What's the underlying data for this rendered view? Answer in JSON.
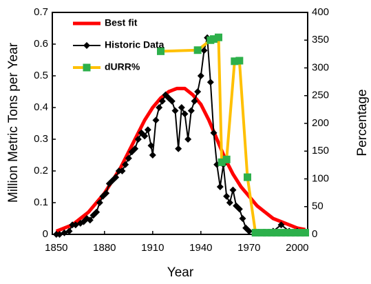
{
  "chart_data": {
    "type": "line",
    "y_label": "Million Metric Tons per Year",
    "y2_label": "Percentage",
    "x_label": "Year",
    "xlim": [
      1847.5,
      2006.5
    ],
    "xticks": [
      1850,
      1880,
      1910,
      1940,
      1970,
      2000
    ],
    "ylim": [
      0,
      0.7
    ],
    "yticks": [
      0,
      0.1,
      0.2,
      0.3,
      0.4,
      0.5,
      0.6,
      0.7
    ],
    "y2lim": [
      0,
      400
    ],
    "y2ticks": [
      0,
      50,
      100,
      150,
      200,
      250,
      300,
      350,
      400
    ],
    "legend": "upper-left",
    "series": [
      {
        "name": "Best fit",
        "color": "#ff0000",
        "marker": "none",
        "x": [
          1850,
          1855,
          1860,
          1865,
          1870,
          1875,
          1880,
          1885,
          1890,
          1895,
          1900,
          1905,
          1910,
          1915,
          1920,
          1925,
          1930,
          1935,
          1940,
          1945,
          1950,
          1955,
          1960,
          1965,
          1970,
          1975,
          1980,
          1985,
          1990,
          1995,
          2000,
          2005
        ],
        "values": [
          0.01,
          0.02,
          0.03,
          0.05,
          0.07,
          0.1,
          0.13,
          0.17,
          0.21,
          0.26,
          0.31,
          0.36,
          0.4,
          0.43,
          0.45,
          0.46,
          0.46,
          0.44,
          0.41,
          0.36,
          0.3,
          0.24,
          0.19,
          0.15,
          0.12,
          0.09,
          0.07,
          0.05,
          0.04,
          0.03,
          0.02,
          0.015
        ]
      },
      {
        "name": "Historic Data",
        "color": "#000000",
        "marker": "diamond",
        "marker_color": "#000000",
        "x": [
          1850,
          1852,
          1855,
          1858,
          1860,
          1862,
          1865,
          1867,
          1869,
          1871,
          1873,
          1875,
          1877,
          1879,
          1881,
          1883,
          1885,
          1887,
          1889,
          1891,
          1893,
          1895,
          1897,
          1899,
          1901,
          1903,
          1905,
          1907,
          1909,
          1910,
          1912,
          1914,
          1916,
          1918,
          1920,
          1922,
          1924,
          1926,
          1928,
          1930,
          1932,
          1934,
          1936,
          1938,
          1940,
          1942,
          1944,
          1946,
          1948,
          1950,
          1952,
          1954,
          1956,
          1958,
          1960,
          1962,
          1964,
          1966,
          1968,
          1970,
          1975,
          1980,
          1985,
          1990,
          1995,
          2000,
          2005
        ],
        "values": [
          0,
          0,
          0.005,
          0.01,
          0.03,
          0.03,
          0.035,
          0.04,
          0.05,
          0.045,
          0.06,
          0.07,
          0.1,
          0.12,
          0.13,
          0.16,
          0.17,
          0.18,
          0.2,
          0.2,
          0.22,
          0.24,
          0.26,
          0.27,
          0.3,
          0.32,
          0.31,
          0.33,
          0.28,
          0.25,
          0.36,
          0.4,
          0.42,
          0.44,
          0.43,
          0.42,
          0.39,
          0.27,
          0.4,
          0.38,
          0.3,
          0.39,
          0.42,
          0.45,
          0.5,
          0.58,
          0.62,
          0.48,
          0.32,
          0.22,
          0.15,
          0.22,
          0.12,
          0.1,
          0.14,
          0.09,
          0.08,
          0.05,
          0.02,
          0.01,
          0.005,
          0.005,
          0.01,
          0.03,
          0.01,
          0.01,
          0.005
        ]
      },
      {
        "name": "dURR%",
        "color": "#ffc000",
        "marker": "square",
        "marker_color": "#2db04b",
        "axis": "y2",
        "x": [
          1915,
          1938,
          1946,
          1948,
          1951,
          1953,
          1956,
          1961,
          1964,
          1969,
          1974,
          1978,
          1981,
          1984,
          1987,
          1990,
          1993,
          1996,
          1999,
          2002,
          2005
        ],
        "values": [
          330,
          332,
          350,
          352,
          355,
          130,
          135,
          312,
          313,
          103,
          3,
          3,
          3,
          3,
          3,
          3,
          3,
          3,
          3,
          3,
          3
        ]
      }
    ]
  }
}
